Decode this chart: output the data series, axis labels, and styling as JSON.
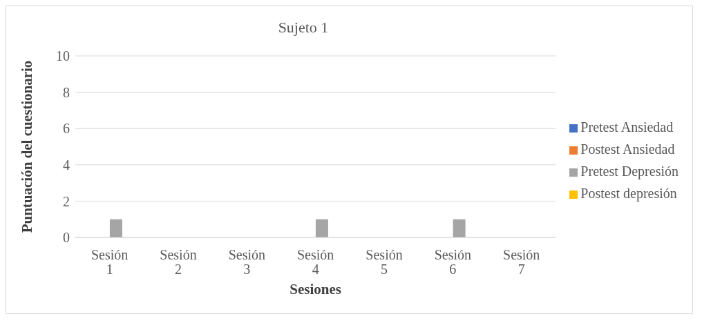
{
  "chart_data": {
    "type": "bar",
    "title": "Sujeto 1",
    "xlabel": "Sesiones",
    "ylabel": "Puntuación del cuestionario",
    "categories": [
      "Sesión 1",
      "Sesión 2",
      "Sesión 3",
      "Sesión 4",
      "Sesión 5",
      "Sesión 6",
      "Sesión 7"
    ],
    "series": [
      {
        "name": "Pretest Ansiedad",
        "color": "#4472c4",
        "values": [
          0,
          0,
          0,
          0,
          0,
          0,
          0
        ]
      },
      {
        "name": "Postest Ansiedad",
        "color": "#ed7d31",
        "values": [
          0,
          0,
          0,
          0,
          0,
          0,
          0
        ]
      },
      {
        "name": "Pretest Depresión",
        "color": "#a5a5a5",
        "values": [
          1,
          0,
          0,
          1,
          0,
          1,
          0
        ]
      },
      {
        "name": "Postest depresión",
        "color": "#ffc000",
        "values": [
          0,
          0,
          0,
          0,
          0,
          0,
          0
        ]
      }
    ],
    "ylim": [
      0,
      10
    ],
    "yticks": [
      0,
      2,
      4,
      6,
      8,
      10
    ],
    "grid": "y",
    "legend": "right"
  }
}
